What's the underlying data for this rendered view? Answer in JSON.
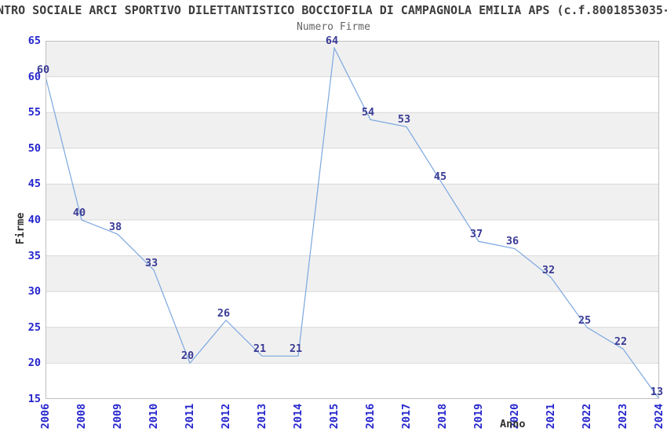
{
  "title": "NTRO SOCIALE ARCI SPORTIVO DILETTANTISTICO BOCCIOFILA DI CAMPAGNOLA EMILIA APS (c.f.8001853035-",
  "subtitle": "Numero Firme",
  "chart_data": {
    "type": "line",
    "title": "Numero Firme",
    "xlabel": "Anno",
    "ylabel": "Firme",
    "categories": [
      "2006",
      "2008",
      "2009",
      "2010",
      "2011",
      "2012",
      "2013",
      "2014",
      "2015",
      "2016",
      "2017",
      "2018",
      "2019",
      "2020",
      "2021",
      "2022",
      "2023",
      "2024"
    ],
    "values": [
      60,
      40,
      38,
      33,
      20,
      26,
      21,
      21,
      64,
      54,
      53,
      45,
      37,
      36,
      32,
      25,
      22,
      13
    ],
    "ylim": [
      15,
      65
    ],
    "y_tick_step": 5,
    "grid": "horizontal-bands-alternating",
    "legend": "none",
    "data_labels_shown": true,
    "colors": {
      "line": "#7ba7df",
      "tick_label": "#2525cd",
      "data_label": "#3a3a96",
      "band_dark": "#f0f0f0",
      "band_light": "#ffffff",
      "gridline": "#d9d9d9",
      "spine": "#bfbfbf",
      "title": "#3c3c3c",
      "subtitle": "#646464",
      "axis_title": "#303030"
    }
  }
}
